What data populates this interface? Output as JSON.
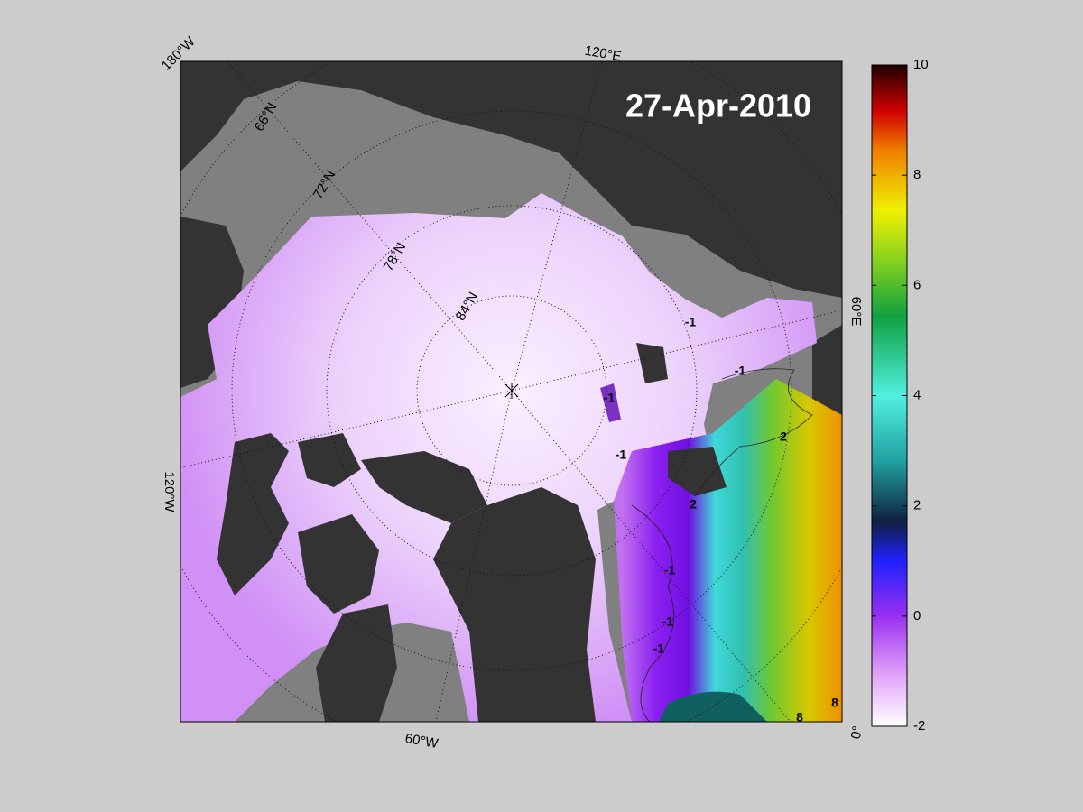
{
  "map": {
    "date": "27-Apr-2010",
    "longitude_labels": [
      "180°W",
      "120°E",
      "60°E",
      "0°",
      "60°W",
      "120°W"
    ],
    "latitude_labels": [
      "66°N",
      "72°N",
      "78°N",
      "84°N"
    ],
    "colorbar": {
      "clim": [
        -2,
        10
      ],
      "ticks": [
        -2,
        0,
        2,
        4,
        6,
        8,
        10
      ]
    },
    "contour_labels": [
      "-1",
      "-1",
      "-1",
      "-1",
      "-1",
      "-1",
      "-1",
      "2",
      "2",
      "8",
      "8"
    ]
  }
}
